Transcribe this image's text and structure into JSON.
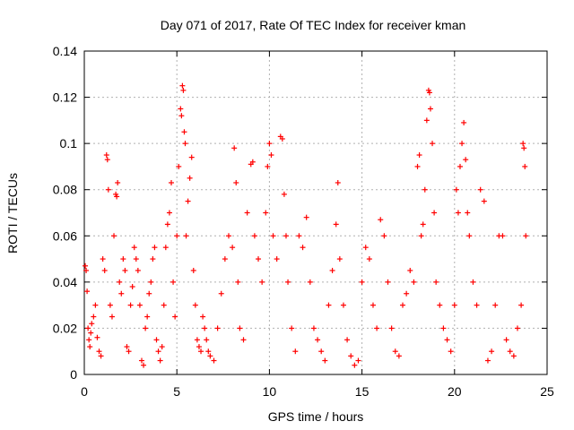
{
  "chart_data": {
    "type": "scatter",
    "title": "Day 071 of 2017, Rate Of TEC Index for receiver kman",
    "xlabel": "GPS time / hours",
    "ylabel": "ROTI / TECUs",
    "xlim": [
      0,
      25
    ],
    "ylim": [
      0,
      0.14
    ],
    "xticks": [
      0,
      5,
      10,
      15,
      20,
      25
    ],
    "yticks": [
      0,
      0.02,
      0.04,
      0.06,
      0.08,
      0.1,
      0.12,
      0.14
    ],
    "ytick_labels": [
      "0",
      "0.02",
      "0.04",
      "0.06",
      "0.08",
      "0.1",
      "0.12",
      "0.14"
    ],
    "xtick_labels": [
      "0",
      "5",
      "10",
      "15",
      "20",
      "25"
    ],
    "grid": true,
    "marker": "+",
    "color": "#ff0000",
    "series": [
      {
        "points": [
          [
            0.05,
            0.047
          ],
          [
            0.1,
            0.045
          ],
          [
            0.15,
            0.036
          ],
          [
            0.2,
            0.02
          ],
          [
            0.25,
            0.015
          ],
          [
            0.3,
            0.012
          ],
          [
            0.35,
            0.018
          ],
          [
            0.4,
            0.022
          ],
          [
            0.5,
            0.025
          ],
          [
            0.6,
            0.03
          ],
          [
            0.7,
            0.016
          ],
          [
            0.8,
            0.01
          ],
          [
            0.9,
            0.008
          ],
          [
            1.0,
            0.05
          ],
          [
            1.1,
            0.045
          ],
          [
            1.2,
            0.095
          ],
          [
            1.25,
            0.093
          ],
          [
            1.3,
            0.08
          ],
          [
            1.4,
            0.03
          ],
          [
            1.5,
            0.025
          ],
          [
            1.6,
            0.06
          ],
          [
            1.7,
            0.078
          ],
          [
            1.75,
            0.077
          ],
          [
            1.8,
            0.083
          ],
          [
            1.9,
            0.04
          ],
          [
            2.0,
            0.035
          ],
          [
            2.1,
            0.05
          ],
          [
            2.2,
            0.045
          ],
          [
            2.3,
            0.012
          ],
          [
            2.4,
            0.01
          ],
          [
            2.5,
            0.03
          ],
          [
            2.6,
            0.038
          ],
          [
            2.7,
            0.055
          ],
          [
            2.8,
            0.05
          ],
          [
            2.9,
            0.045
          ],
          [
            3.0,
            0.03
          ],
          [
            3.1,
            0.006
          ],
          [
            3.2,
            0.004
          ],
          [
            3.3,
            0.02
          ],
          [
            3.4,
            0.025
          ],
          [
            3.5,
            0.035
          ],
          [
            3.6,
            0.04
          ],
          [
            3.7,
            0.05
          ],
          [
            3.8,
            0.055
          ],
          [
            3.9,
            0.015
          ],
          [
            4.0,
            0.01
          ],
          [
            4.1,
            0.006
          ],
          [
            4.2,
            0.012
          ],
          [
            4.3,
            0.03
          ],
          [
            4.4,
            0.055
          ],
          [
            4.5,
            0.065
          ],
          [
            4.6,
            0.07
          ],
          [
            4.7,
            0.083
          ],
          [
            4.8,
            0.04
          ],
          [
            4.9,
            0.025
          ],
          [
            5.0,
            0.06
          ],
          [
            5.1,
            0.09
          ],
          [
            5.2,
            0.115
          ],
          [
            5.25,
            0.112
          ],
          [
            5.3,
            0.125
          ],
          [
            5.35,
            0.123
          ],
          [
            5.4,
            0.105
          ],
          [
            5.45,
            0.1
          ],
          [
            5.5,
            0.06
          ],
          [
            5.6,
            0.075
          ],
          [
            5.7,
            0.085
          ],
          [
            5.8,
            0.094
          ],
          [
            5.9,
            0.045
          ],
          [
            6.0,
            0.03
          ],
          [
            6.1,
            0.015
          ],
          [
            6.2,
            0.012
          ],
          [
            6.3,
            0.01
          ],
          [
            6.4,
            0.025
          ],
          [
            6.5,
            0.02
          ],
          [
            6.6,
            0.015
          ],
          [
            6.7,
            0.01
          ],
          [
            6.8,
            0.008
          ],
          [
            7.0,
            0.006
          ],
          [
            7.2,
            0.02
          ],
          [
            7.4,
            0.035
          ],
          [
            7.6,
            0.05
          ],
          [
            7.8,
            0.06
          ],
          [
            8.0,
            0.055
          ],
          [
            8.1,
            0.098
          ],
          [
            8.2,
            0.083
          ],
          [
            8.3,
            0.04
          ],
          [
            8.4,
            0.02
          ],
          [
            8.6,
            0.015
          ],
          [
            8.8,
            0.07
          ],
          [
            9.0,
            0.091
          ],
          [
            9.1,
            0.092
          ],
          [
            9.2,
            0.06
          ],
          [
            9.4,
            0.05
          ],
          [
            9.6,
            0.04
          ],
          [
            9.8,
            0.07
          ],
          [
            9.9,
            0.09
          ],
          [
            10.0,
            0.1
          ],
          [
            10.1,
            0.095
          ],
          [
            10.2,
            0.06
          ],
          [
            10.4,
            0.05
          ],
          [
            10.6,
            0.103
          ],
          [
            10.7,
            0.102
          ],
          [
            10.8,
            0.078
          ],
          [
            10.9,
            0.06
          ],
          [
            11.0,
            0.04
          ],
          [
            11.2,
            0.02
          ],
          [
            11.4,
            0.01
          ],
          [
            11.6,
            0.06
          ],
          [
            11.8,
            0.055
          ],
          [
            12.0,
            0.068
          ],
          [
            12.2,
            0.04
          ],
          [
            12.4,
            0.02
          ],
          [
            12.6,
            0.015
          ],
          [
            12.8,
            0.01
          ],
          [
            13.0,
            0.006
          ],
          [
            13.2,
            0.03
          ],
          [
            13.4,
            0.045
          ],
          [
            13.6,
            0.065
          ],
          [
            13.7,
            0.083
          ],
          [
            13.8,
            0.05
          ],
          [
            14.0,
            0.03
          ],
          [
            14.2,
            0.015
          ],
          [
            14.4,
            0.008
          ],
          [
            14.6,
            0.004
          ],
          [
            14.8,
            0.006
          ],
          [
            15.0,
            0.04
          ],
          [
            15.2,
            0.055
          ],
          [
            15.4,
            0.05
          ],
          [
            15.6,
            0.03
          ],
          [
            15.8,
            0.02
          ],
          [
            16.0,
            0.067
          ],
          [
            16.2,
            0.06
          ],
          [
            16.4,
            0.04
          ],
          [
            16.6,
            0.02
          ],
          [
            16.8,
            0.01
          ],
          [
            17.0,
            0.008
          ],
          [
            17.2,
            0.03
          ],
          [
            17.4,
            0.035
          ],
          [
            17.6,
            0.045
          ],
          [
            17.8,
            0.04
          ],
          [
            18.0,
            0.09
          ],
          [
            18.1,
            0.095
          ],
          [
            18.2,
            0.06
          ],
          [
            18.3,
            0.065
          ],
          [
            18.4,
            0.08
          ],
          [
            18.5,
            0.11
          ],
          [
            18.6,
            0.123
          ],
          [
            18.65,
            0.122
          ],
          [
            18.7,
            0.115
          ],
          [
            18.8,
            0.1
          ],
          [
            18.9,
            0.07
          ],
          [
            19.0,
            0.04
          ],
          [
            19.2,
            0.03
          ],
          [
            19.4,
            0.02
          ],
          [
            19.6,
            0.015
          ],
          [
            19.8,
            0.01
          ],
          [
            20.0,
            0.03
          ],
          [
            20.1,
            0.08
          ],
          [
            20.2,
            0.07
          ],
          [
            20.3,
            0.09
          ],
          [
            20.4,
            0.1
          ],
          [
            20.5,
            0.109
          ],
          [
            20.6,
            0.093
          ],
          [
            20.7,
            0.07
          ],
          [
            20.8,
            0.06
          ],
          [
            21.0,
            0.04
          ],
          [
            21.2,
            0.03
          ],
          [
            21.4,
            0.08
          ],
          [
            21.6,
            0.075
          ],
          [
            21.8,
            0.006
          ],
          [
            22.0,
            0.01
          ],
          [
            22.2,
            0.03
          ],
          [
            22.4,
            0.06
          ],
          [
            22.6,
            0.06
          ],
          [
            22.8,
            0.015
          ],
          [
            23.0,
            0.01
          ],
          [
            23.2,
            0.008
          ],
          [
            23.4,
            0.02
          ],
          [
            23.6,
            0.03
          ],
          [
            23.7,
            0.1
          ],
          [
            23.75,
            0.098
          ],
          [
            23.8,
            0.09
          ],
          [
            23.85,
            0.06
          ]
        ]
      }
    ]
  }
}
